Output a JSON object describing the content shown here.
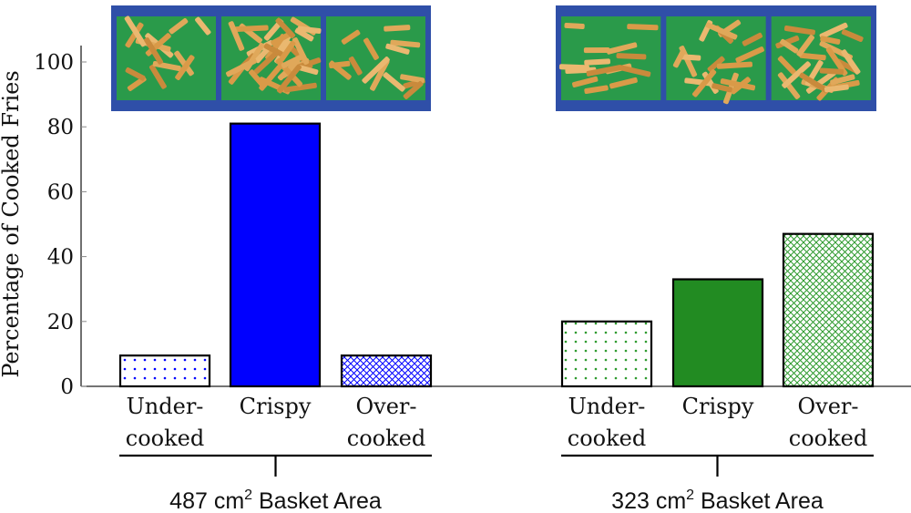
{
  "chart_data": {
    "type": "bar",
    "title": "",
    "ylabel": "Percentage of Cooked Fries",
    "xlabel": "",
    "ylim": [
      0,
      105
    ],
    "yticks": [
      0,
      20,
      40,
      60,
      80,
      100
    ],
    "grid": false,
    "legend": null,
    "categories": [
      "Under-cooked",
      "Crispy",
      "Over-cooked"
    ],
    "category_label_lines": [
      [
        "Under-",
        "cooked"
      ],
      [
        "Crispy"
      ],
      [
        "Over-",
        "cooked"
      ]
    ],
    "groups": [
      {
        "label_prefix": "487 cm",
        "label_sup": "2",
        "label_suffix": " Basket Area",
        "label": "487 cm² Basket Area",
        "color": "#0000ff",
        "values": [
          9.5,
          81,
          9.5
        ],
        "patterns": [
          "dots",
          "solid",
          "crosshatch"
        ]
      },
      {
        "label_prefix": "323 cm",
        "label_sup": "2",
        "label_suffix": " Basket Area",
        "label": "323 cm² Basket Area",
        "color": "#228b22",
        "values": [
          20,
          33,
          47
        ],
        "patterns": [
          "dots",
          "solid",
          "crosshatch"
        ]
      }
    ],
    "images": [
      {
        "description": "Photo of three trays of fries (undercooked, crispy, overcooked) for 487 cm² basket",
        "position": "above group 1"
      },
      {
        "description": "Photo of three trays of fries (undercooked, crispy, overcooked) for 323 cm² basket",
        "position": "above group 2"
      }
    ]
  }
}
